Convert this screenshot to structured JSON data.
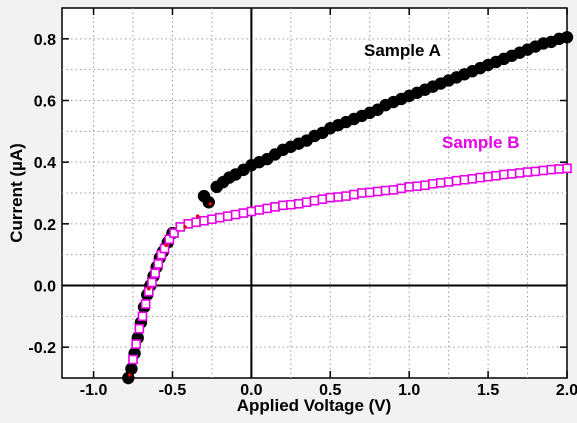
{
  "chart_data": {
    "type": "scatter",
    "xlabel": "Applied Voltage (V)",
    "ylabel": "Current (µA)",
    "xlim": [
      -1.2,
      2.0
    ],
    "ylim": [
      -0.3,
      0.9
    ],
    "xticks": [
      -1.0,
      -0.5,
      0.0,
      0.5,
      1.0,
      1.5,
      2.0
    ],
    "xtick_labels": [
      "-1.0",
      "-0.5",
      "0.0",
      "0.5",
      "1.0",
      "1.5",
      "2.0"
    ],
    "yticks": [
      -0.2,
      0.0,
      0.2,
      0.4,
      0.6,
      0.8
    ],
    "ytick_labels": [
      "-0.2",
      "0.0",
      "0.2",
      "0.4",
      "0.6",
      "0.8"
    ],
    "grid": true,
    "colors": {
      "sample_a": "#000000",
      "sample_b": "#e600e6",
      "connector": "#e00000"
    },
    "series": [
      {
        "name": "Sample A",
        "marker": "filled-circle",
        "color": "#000000",
        "points": [
          [
            -0.78,
            -0.3
          ],
          [
            -0.76,
            -0.27
          ],
          [
            -0.74,
            -0.22
          ],
          [
            -0.72,
            -0.17
          ],
          [
            -0.7,
            -0.12
          ],
          [
            -0.68,
            -0.07
          ],
          [
            -0.66,
            -0.03
          ],
          [
            -0.64,
            0.0
          ],
          [
            -0.62,
            0.03
          ],
          [
            -0.6,
            0.06
          ],
          [
            -0.58,
            0.09
          ],
          [
            -0.56,
            0.11
          ],
          [
            -0.53,
            0.14
          ],
          [
            -0.5,
            0.17
          ],
          [
            -0.3,
            0.29
          ],
          [
            -0.27,
            0.27
          ],
          [
            -0.22,
            0.32
          ],
          [
            -0.18,
            0.335
          ],
          [
            -0.14,
            0.35
          ],
          [
            -0.1,
            0.36
          ],
          [
            -0.05,
            0.375
          ],
          [
            0.0,
            0.39
          ],
          [
            0.05,
            0.4
          ],
          [
            0.1,
            0.41
          ],
          [
            0.15,
            0.425
          ],
          [
            0.2,
            0.44
          ],
          [
            0.25,
            0.45
          ],
          [
            0.3,
            0.46
          ],
          [
            0.35,
            0.47
          ],
          [
            0.4,
            0.485
          ],
          [
            0.45,
            0.495
          ],
          [
            0.5,
            0.51
          ],
          [
            0.55,
            0.52
          ],
          [
            0.6,
            0.53
          ],
          [
            0.65,
            0.54
          ],
          [
            0.7,
            0.55
          ],
          [
            0.75,
            0.56
          ],
          [
            0.8,
            0.57
          ],
          [
            0.85,
            0.585
          ],
          [
            0.9,
            0.595
          ],
          [
            0.95,
            0.605
          ],
          [
            1.0,
            0.615
          ],
          [
            1.05,
            0.625
          ],
          [
            1.1,
            0.635
          ],
          [
            1.15,
            0.645
          ],
          [
            1.2,
            0.655
          ],
          [
            1.25,
            0.665
          ],
          [
            1.3,
            0.675
          ],
          [
            1.35,
            0.685
          ],
          [
            1.4,
            0.695
          ],
          [
            1.45,
            0.705
          ],
          [
            1.5,
            0.715
          ],
          [
            1.55,
            0.725
          ],
          [
            1.6,
            0.735
          ],
          [
            1.65,
            0.745
          ],
          [
            1.7,
            0.755
          ],
          [
            1.75,
            0.765
          ],
          [
            1.8,
            0.775
          ],
          [
            1.85,
            0.785
          ],
          [
            1.9,
            0.79
          ],
          [
            1.95,
            0.8
          ],
          [
            2.0,
            0.805
          ]
        ]
      },
      {
        "name": "Sample B",
        "marker": "open-square",
        "color": "#e600e6",
        "points": [
          [
            -0.75,
            -0.24
          ],
          [
            -0.73,
            -0.19
          ],
          [
            -0.71,
            -0.14
          ],
          [
            -0.69,
            -0.1
          ],
          [
            -0.67,
            -0.06
          ],
          [
            -0.65,
            -0.02
          ],
          [
            -0.63,
            0.01
          ],
          [
            -0.61,
            0.04
          ],
          [
            -0.59,
            0.07
          ],
          [
            -0.57,
            0.1
          ],
          [
            -0.55,
            0.12
          ],
          [
            -0.52,
            0.15
          ],
          [
            -0.49,
            0.17
          ],
          [
            -0.45,
            0.19
          ],
          [
            -0.4,
            0.2
          ],
          [
            -0.35,
            0.205
          ],
          [
            -0.3,
            0.21
          ],
          [
            -0.25,
            0.215
          ],
          [
            -0.2,
            0.22
          ],
          [
            -0.15,
            0.225
          ],
          [
            -0.1,
            0.23
          ],
          [
            -0.05,
            0.235
          ],
          [
            0.0,
            0.24
          ],
          [
            0.05,
            0.245
          ],
          [
            0.1,
            0.25
          ],
          [
            0.15,
            0.255
          ],
          [
            0.2,
            0.26
          ],
          [
            0.25,
            0.262
          ],
          [
            0.3,
            0.265
          ],
          [
            0.35,
            0.27
          ],
          [
            0.4,
            0.275
          ],
          [
            0.45,
            0.28
          ],
          [
            0.5,
            0.285
          ],
          [
            0.55,
            0.287
          ],
          [
            0.6,
            0.29
          ],
          [
            0.65,
            0.295
          ],
          [
            0.7,
            0.3
          ],
          [
            0.75,
            0.302
          ],
          [
            0.8,
            0.305
          ],
          [
            0.85,
            0.308
          ],
          [
            0.9,
            0.31
          ],
          [
            0.95,
            0.315
          ],
          [
            1.0,
            0.32
          ],
          [
            1.05,
            0.322
          ],
          [
            1.1,
            0.325
          ],
          [
            1.15,
            0.33
          ],
          [
            1.2,
            0.333
          ],
          [
            1.25,
            0.336
          ],
          [
            1.3,
            0.34
          ],
          [
            1.35,
            0.343
          ],
          [
            1.4,
            0.346
          ],
          [
            1.45,
            0.35
          ],
          [
            1.5,
            0.353
          ],
          [
            1.55,
            0.356
          ],
          [
            1.6,
            0.36
          ],
          [
            1.65,
            0.362
          ],
          [
            1.7,
            0.365
          ],
          [
            1.75,
            0.368
          ],
          [
            1.8,
            0.37
          ],
          [
            1.85,
            0.373
          ],
          [
            1.9,
            0.376
          ],
          [
            1.95,
            0.378
          ],
          [
            2.0,
            0.38
          ]
        ]
      },
      {
        "name": "",
        "marker": "small-dot",
        "color": "#e00000",
        "points": [
          [
            -0.77,
            -0.29
          ],
          [
            -0.65,
            -0.01
          ],
          [
            -0.54,
            0.13
          ],
          [
            -0.42,
            0.19
          ],
          [
            -0.34,
            0.225
          ],
          [
            -0.26,
            0.265
          ]
        ]
      }
    ]
  }
}
